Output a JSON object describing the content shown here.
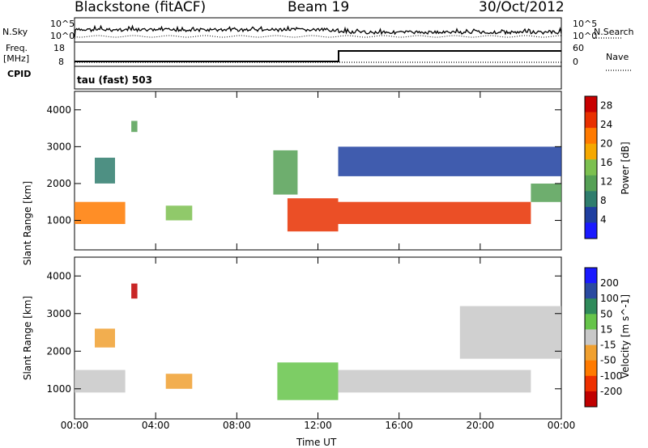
{
  "header": {
    "station": "Blackstone (fitACF)",
    "beam": "Beam 19",
    "date": "30/Oct/2012"
  },
  "left_labels": {
    "nsky": "N.Sky",
    "freq_line1": "Freq.",
    "freq_line2": "[MHz]",
    "cpid": "CPID"
  },
  "right_labels": {
    "nsearch": "N.Search",
    "nave": "Nave"
  },
  "cpid_text": "tau (fast) 503",
  "noise_ticks": {
    "top": "10^5",
    "bottom": "10^0"
  },
  "freq_ticks": [
    "18",
    "8"
  ],
  "nave_ticks": [
    "60",
    "0"
  ],
  "colors": {
    "power": [
      "#1a1aff",
      "#1f3fa0",
      "#2f7d6d",
      "#55a055",
      "#7cc050",
      "#f5a800",
      "#ff7a00",
      "#e83000",
      "#c80000"
    ],
    "velocity": [
      "#1a1aff",
      "#2a4aa0",
      "#2f8a5a",
      "#66c44a",
      "#c8c8c8",
      "#f0a030",
      "#ff7a00",
      "#ee3000",
      "#c00000"
    ]
  },
  "chart_data": [
    {
      "type": "heatmap",
      "title": "",
      "xlabel": "Time UT",
      "ylabel": "Slant Range [km]",
      "x_ticks": [
        "00:00",
        "04:00",
        "08:00",
        "12:00",
        "16:00",
        "20:00",
        "00:00"
      ],
      "xlim": [
        0,
        24
      ],
      "y_ticks": [
        1000,
        2000,
        3000,
        4000
      ],
      "ylim": [
        200,
        4500
      ],
      "colorbar": {
        "label": "Power [dB]",
        "ticks": [
          "4",
          "8",
          "12",
          "16",
          "20",
          "24",
          "28"
        ],
        "range": [
          0,
          30
        ]
      },
      "regions": [
        {
          "t": [
            0.0,
            2.5
          ],
          "r": [
            900,
            1500
          ],
          "v": 20
        },
        {
          "t": [
            1.0,
            2.0
          ],
          "r": [
            2000,
            2700
          ],
          "v": 8
        },
        {
          "t": [
            2.8,
            3.1
          ],
          "r": [
            3400,
            3700
          ],
          "v": 12
        },
        {
          "t": [
            4.5,
            5.8
          ],
          "r": [
            1000,
            1400
          ],
          "v": 14
        },
        {
          "t": [
            9.8,
            11.0
          ],
          "r": [
            1700,
            2900
          ],
          "v": 10
        },
        {
          "t": [
            10.5,
            13.0
          ],
          "r": [
            700,
            1600
          ],
          "v": 26
        },
        {
          "t": [
            13.0,
            22.5
          ],
          "r": [
            900,
            1500
          ],
          "v": 24
        },
        {
          "t": [
            22.5,
            24.0
          ],
          "r": [
            1500,
            2000
          ],
          "v": 12
        },
        {
          "t": [
            13.0,
            24.0
          ],
          "r": [
            2200,
            3000
          ],
          "v": 6
        }
      ]
    },
    {
      "type": "heatmap",
      "title": "",
      "xlabel": "Time UT",
      "ylabel": "Slant Range [km]",
      "x_ticks": [
        "00:00",
        "04:00",
        "08:00",
        "12:00",
        "16:00",
        "20:00",
        "00:00"
      ],
      "xlim": [
        0,
        24
      ],
      "y_ticks": [
        1000,
        2000,
        3000,
        4000
      ],
      "ylim": [
        200,
        4500
      ],
      "colorbar": {
        "label": "Velocity [m s^-1]",
        "ticks": [
          "200",
          "100",
          "50",
          "15",
          "-15",
          "-50",
          "-100",
          "-200"
        ],
        "range": [
          -250,
          250
        ]
      },
      "regions": [
        {
          "t": [
            0.0,
            2.5
          ],
          "r": [
            900,
            1500
          ],
          "v": 0
        },
        {
          "t": [
            1.0,
            2.0
          ],
          "r": [
            2100,
            2600
          ],
          "v": -60
        },
        {
          "t": [
            2.8,
            3.1
          ],
          "r": [
            3400,
            3800
          ],
          "v": -220
        },
        {
          "t": [
            4.5,
            5.8
          ],
          "r": [
            1000,
            1400
          ],
          "v": -50
        },
        {
          "t": [
            10.0,
            13.0
          ],
          "r": [
            700,
            1700
          ],
          "v": 30
        },
        {
          "t": [
            13.0,
            22.5
          ],
          "r": [
            900,
            1500
          ],
          "v": 0
        },
        {
          "t": [
            19.0,
            24.0
          ],
          "r": [
            1800,
            3200
          ],
          "v": -10
        }
      ]
    }
  ]
}
